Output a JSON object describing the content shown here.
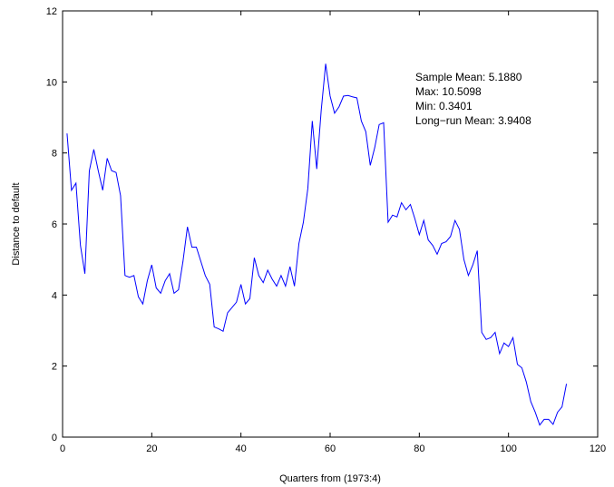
{
  "chart_data": {
    "type": "line",
    "title": "",
    "xlabel": "Quarters from (1973:4)",
    "ylabel": "Distance to default",
    "xlim": [
      0,
      120
    ],
    "ylim": [
      0,
      12
    ],
    "xticks": [
      0,
      20,
      40,
      60,
      80,
      100,
      120
    ],
    "yticks": [
      0,
      2,
      4,
      6,
      8,
      10,
      12
    ],
    "grid": false,
    "line_color": "#0000ff",
    "annotations": [
      "Sample Mean: 5.1880",
      "Max: 10.5098",
      "Min: 0.3401",
      "Long−run Mean: 3.9408"
    ],
    "series": [
      {
        "x": [
          1,
          2,
          3,
          4,
          5,
          6,
          7,
          8,
          9,
          10,
          11,
          12,
          13,
          14,
          15,
          16,
          17,
          18,
          19,
          20,
          21,
          22,
          23,
          24,
          25,
          26,
          27,
          28,
          29,
          30,
          31,
          32,
          33,
          34,
          35,
          36,
          37,
          38,
          39,
          40,
          41,
          42,
          43,
          44,
          45,
          46,
          47,
          48,
          49,
          50,
          51,
          52,
          53,
          54,
          55,
          56,
          57,
          58,
          59,
          60,
          61,
          62,
          63,
          64,
          65,
          66,
          67,
          68,
          69,
          70,
          71,
          72,
          73,
          74,
          75,
          76,
          77,
          78,
          79,
          80,
          81,
          82,
          83,
          84,
          85,
          86,
          87,
          88,
          89,
          90,
          91,
          92,
          93,
          94,
          95,
          96,
          97,
          98,
          99,
          100,
          101,
          102,
          103,
          104,
          105,
          106,
          107,
          108,
          109,
          110,
          111,
          112,
          113
        ],
        "y": [
          8.55,
          6.95,
          7.15,
          5.4,
          4.6,
          7.5,
          8.1,
          7.5,
          6.95,
          7.85,
          7.5,
          7.45,
          6.8,
          4.55,
          4.5,
          4.55,
          3.95,
          3.75,
          4.4,
          4.85,
          4.2,
          4.05,
          4.4,
          4.6,
          4.05,
          4.15,
          4.95,
          5.92,
          5.35,
          5.35,
          4.95,
          4.55,
          4.3,
          3.1,
          3.05,
          2.98,
          3.5,
          3.65,
          3.8,
          4.3,
          3.75,
          3.9,
          5.05,
          4.55,
          4.35,
          4.7,
          4.45,
          4.25,
          4.55,
          4.25,
          4.8,
          4.25,
          5.45,
          6.05,
          7.0,
          8.9,
          7.55,
          9.2,
          10.51,
          9.6,
          9.12,
          9.3,
          9.6,
          9.62,
          9.58,
          9.55,
          8.9,
          8.6,
          7.65,
          8.15,
          8.8,
          8.85,
          6.05,
          6.25,
          6.2,
          6.6,
          6.4,
          6.55,
          6.15,
          5.7,
          6.1,
          5.55,
          5.4,
          5.15,
          5.45,
          5.5,
          5.65,
          6.1,
          5.85,
          5.0,
          4.55,
          4.85,
          5.25,
          2.95,
          2.75,
          2.8,
          2.95,
          2.35,
          2.65,
          2.55,
          2.8,
          2.05,
          1.95,
          1.55,
          1.0,
          0.7,
          0.34,
          0.5,
          0.5,
          0.36,
          0.7,
          0.85,
          1.5
        ]
      }
    ]
  }
}
